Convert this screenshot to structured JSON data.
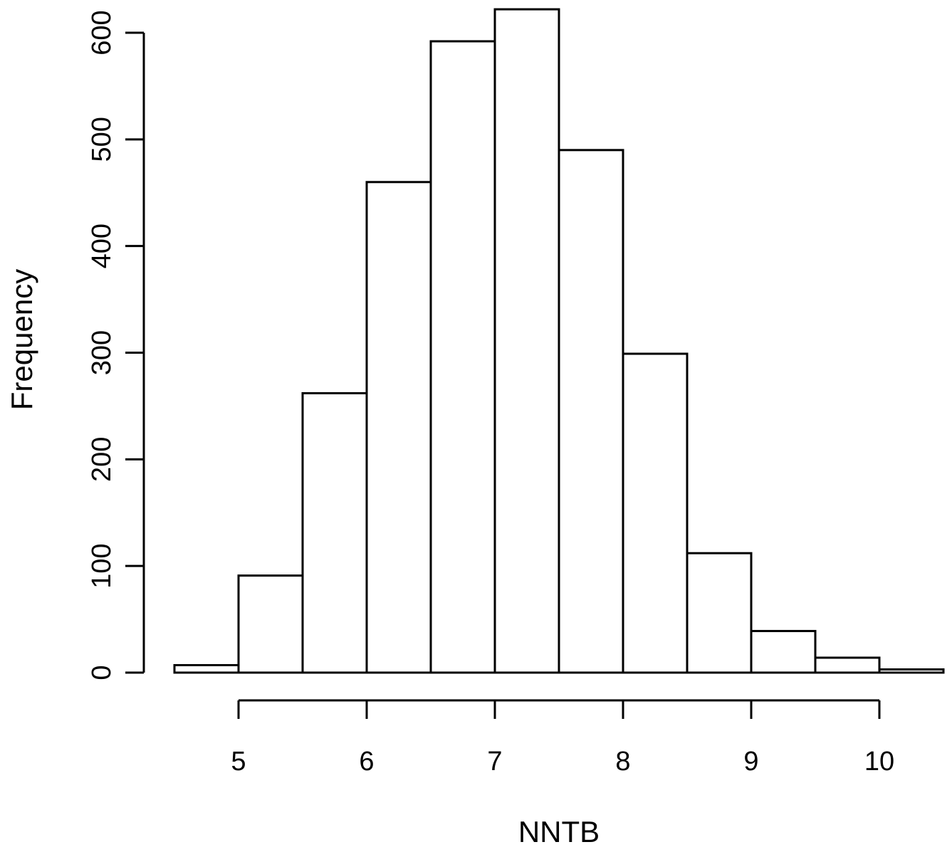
{
  "chart_data": {
    "type": "bar",
    "xlabel": "NNTB",
    "ylabel": "Frequency",
    "bins": [
      {
        "x0": 4.5,
        "x1": 5.0,
        "count": 7
      },
      {
        "x0": 5.0,
        "x1": 5.5,
        "count": 91
      },
      {
        "x0": 5.5,
        "x1": 6.0,
        "count": 262
      },
      {
        "x0": 6.0,
        "x1": 6.5,
        "count": 460
      },
      {
        "x0": 6.5,
        "x1": 7.0,
        "count": 592
      },
      {
        "x0": 7.0,
        "x1": 7.5,
        "count": 622
      },
      {
        "x0": 7.5,
        "x1": 8.0,
        "count": 490
      },
      {
        "x0": 8.0,
        "x1": 8.5,
        "count": 299
      },
      {
        "x0": 8.5,
        "x1": 9.0,
        "count": 112
      },
      {
        "x0": 9.0,
        "x1": 9.5,
        "count": 39
      },
      {
        "x0": 9.5,
        "x1": 10.0,
        "count": 14
      },
      {
        "x0": 10.0,
        "x1": 10.5,
        "count": 3
      }
    ],
    "x_ticks": [
      "5",
      "6",
      "7",
      "8",
      "9",
      "10"
    ],
    "y_ticks": [
      "0",
      "100",
      "200",
      "300",
      "400",
      "500",
      "600"
    ],
    "xlim": [
      4.5,
      10.5
    ],
    "ylim": [
      0,
      600
    ],
    "grid": false,
    "legend": "none",
    "colors": {
      "bar_fill": "#ffffff",
      "bar_stroke": "#000000"
    }
  }
}
